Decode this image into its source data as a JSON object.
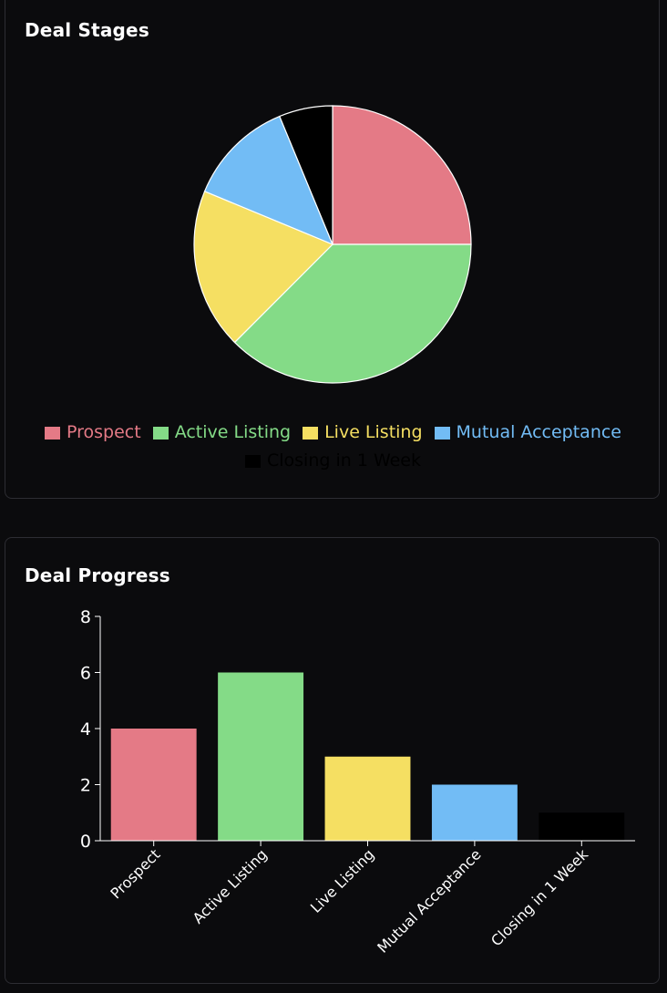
{
  "deal_stages": {
    "title": "Deal Stages"
  },
  "deal_progress": {
    "title": "Deal Progress"
  },
  "chart_data": [
    {
      "type": "pie",
      "title": "Deal Stages",
      "categories": [
        "Prospect",
        "Active Listing",
        "Live Listing",
        "Mutual Acceptance",
        "Closing in 1 Week"
      ],
      "values": [
        4,
        6,
        3,
        2,
        1
      ],
      "colors": [
        "#e47a86",
        "#84db87",
        "#f5df62",
        "#72bcf5",
        "#000000"
      ],
      "legend_position": "bottom"
    },
    {
      "type": "bar",
      "title": "Deal Progress",
      "categories": [
        "Prospect",
        "Active Listing",
        "Live Listing",
        "Mutual Acceptance",
        "Closing in 1 Week"
      ],
      "values": [
        4,
        6,
        3,
        2,
        1
      ],
      "colors": [
        "#e47a86",
        "#84db87",
        "#f5df62",
        "#72bcf5",
        "#000000"
      ],
      "ylim": [
        0,
        8
      ],
      "yticks": [
        "0",
        "2",
        "4",
        "6",
        "8"
      ],
      "xlabel": "",
      "ylabel": "",
      "grid": false
    }
  ]
}
